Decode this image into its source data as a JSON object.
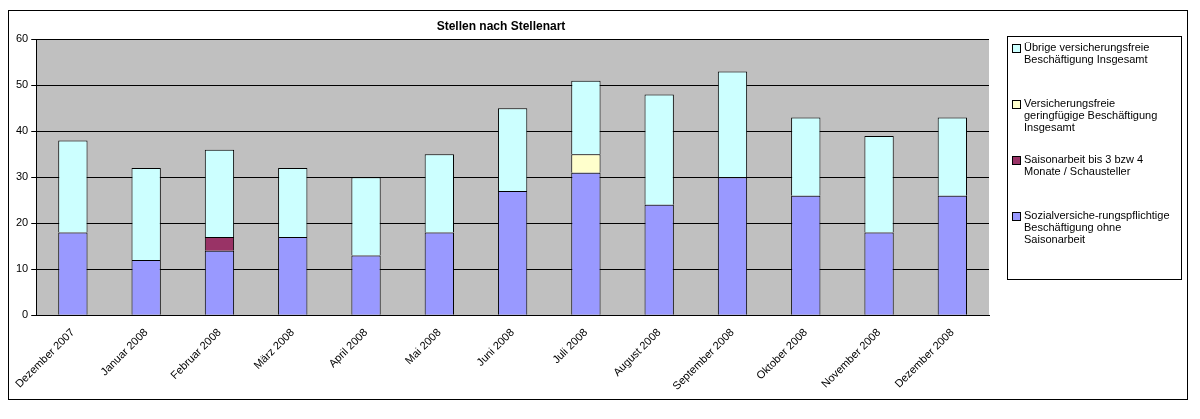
{
  "chart_data": {
    "type": "bar",
    "title": "Stellen nach Stellenart",
    "categories": [
      "Dezember 2007",
      "Januar 2008",
      "Februar 2008",
      "März 2008",
      "April 2008",
      "Mai 2008",
      "Juni 2008",
      "Juli 2008",
      "August 2008",
      "September 2008",
      "Oktober 2008",
      "November 2008",
      "Dezember 2008"
    ],
    "series": [
      {
        "name": "Sozialversiche-rungspflichtige Beschäftigung ohne Saisonarbeit",
        "color": "#9999ff",
        "values": [
          18,
          12,
          14,
          17,
          13,
          18,
          27,
          31,
          24,
          30,
          26,
          18,
          26
        ]
      },
      {
        "name": "Saisonarbeit bis 3 bzw 4 Monate / Schausteller",
        "color": "#993366",
        "values": [
          0,
          0,
          3,
          0,
          0,
          0,
          0,
          0,
          0,
          0,
          0,
          0,
          0
        ]
      },
      {
        "name": "Versicherungsfreie geringfügige Beschäftigung Insgesamt",
        "color": "#ffffcc",
        "values": [
          0,
          0,
          0,
          0,
          0,
          0,
          0,
          4,
          0,
          0,
          0,
          0,
          0
        ]
      },
      {
        "name": "Übrige versicherungsfreie Beschäftigung Insgesamt",
        "color": "#ccffff",
        "values": [
          20,
          20,
          19,
          15,
          17,
          17,
          18,
          16,
          24,
          23,
          17,
          21,
          17
        ]
      }
    ],
    "stacked": true,
    "ylim": [
      0,
      60
    ],
    "yticks": [
      0,
      10,
      20,
      30,
      40,
      50,
      60
    ],
    "grid": "y",
    "legend": "right"
  }
}
